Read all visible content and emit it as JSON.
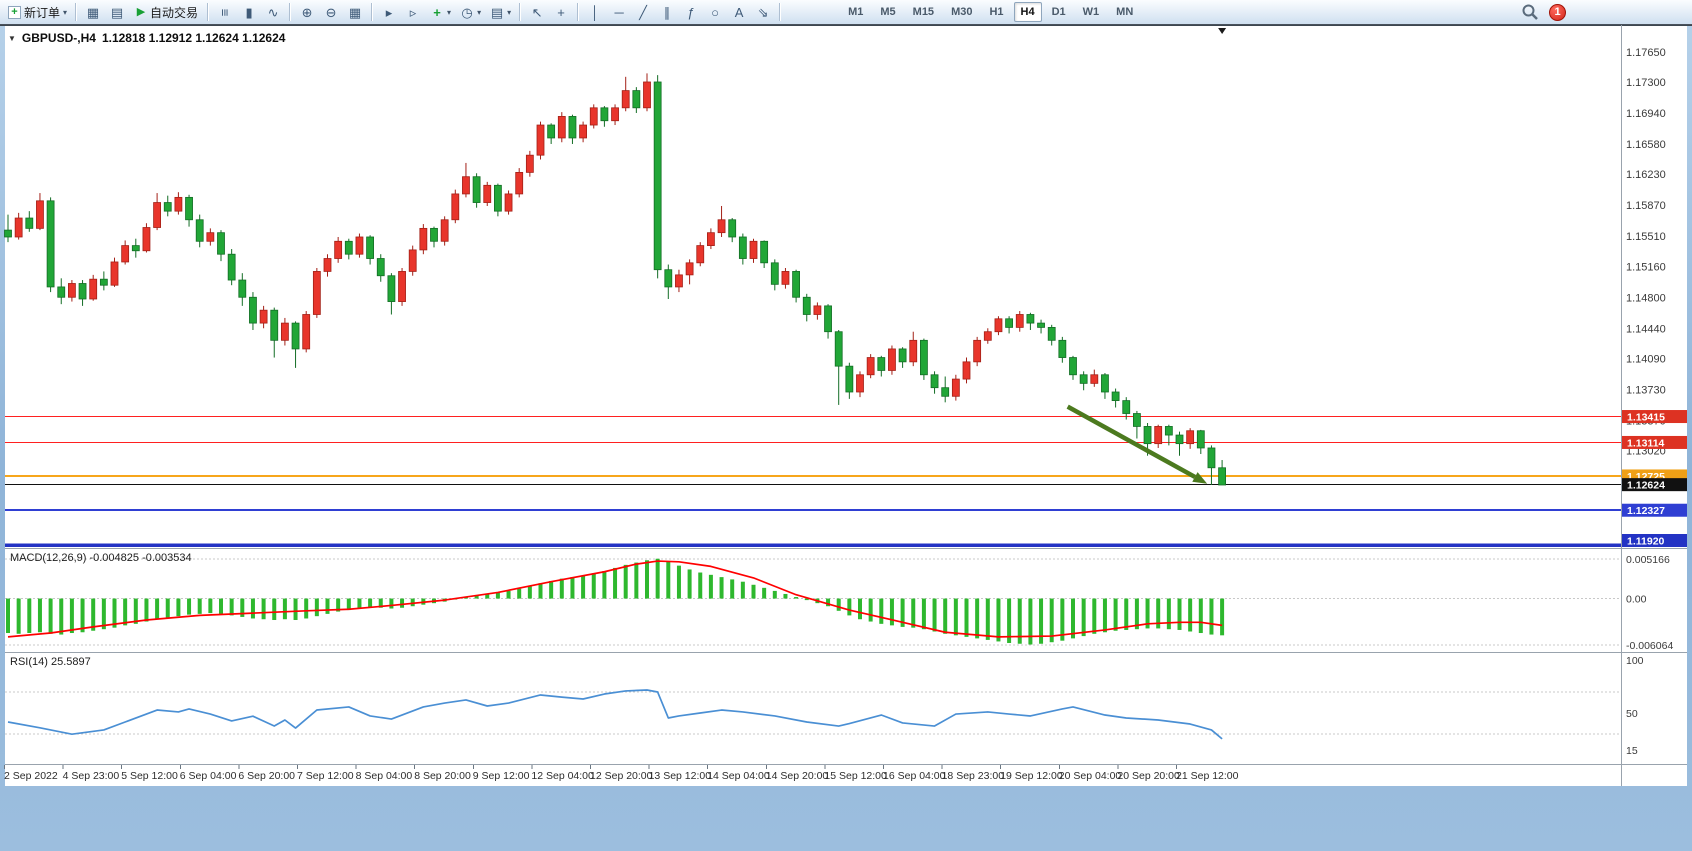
{
  "toolbar": {
    "new_order_label": "新订单",
    "auto_trading_label": "自动交易",
    "dropdown_caret": "▾",
    "icon_groups": [
      [
        {
          "name": "market-watch",
          "glyph": "▦"
        },
        {
          "name": "navigator",
          "glyph": "▤"
        }
      ],
      [
        {
          "name": "bar-chart",
          "glyph": "≡",
          "rot": true
        },
        {
          "name": "candlestick-chart",
          "glyph": "▮"
        },
        {
          "name": "line-chart",
          "glyph": "∿"
        }
      ],
      [
        {
          "name": "zoom-in",
          "glyph": "⊕"
        },
        {
          "name": "zoom-out",
          "glyph": "⊖"
        },
        {
          "name": "tile-windows",
          "glyph": "▦"
        }
      ],
      [
        {
          "name": "auto-scroll",
          "glyph": "▸"
        },
        {
          "name": "chart-shift",
          "glyph": "▹"
        },
        {
          "name": "indicators",
          "glyph": "+",
          "caret": true,
          "green": true
        },
        {
          "name": "periods",
          "glyph": "◷",
          "caret": true
        },
        {
          "name": "templates",
          "glyph": "▤",
          "caret": true
        }
      ],
      [
        {
          "name": "cursor",
          "glyph": "↖"
        },
        {
          "name": "crosshair",
          "glyph": "+"
        }
      ],
      [
        {
          "name": "vertical-line",
          "glyph": "│"
        },
        {
          "name": "horizontal-line",
          "glyph": "─"
        },
        {
          "name": "trendline",
          "glyph": "╱"
        },
        {
          "name": "equidistant-channel",
          "glyph": "∥"
        },
        {
          "name": "fibonacci",
          "glyph": "ƒ"
        },
        {
          "name": "ellipse",
          "glyph": "○"
        },
        {
          "name": "text",
          "glyph": "A"
        },
        {
          "name": "arrows",
          "glyph": "⇘"
        }
      ]
    ],
    "timeframes": [
      "M1",
      "M5",
      "M15",
      "M30",
      "H1",
      "H4",
      "D1",
      "W1",
      "MN"
    ],
    "active_timeframe": "H4",
    "notification_badge": "1"
  },
  "chart": {
    "collapse_caret": "▼",
    "symbol_title": "GBPUSD-,H4",
    "ohlc_text": "1.12818 1.12912 1.12624 1.12624"
  },
  "chart_data": {
    "type": "candlestick",
    "symbol": "GBPUSD-",
    "timeframe": "H4",
    "last_ohlc": {
      "open": 1.12818,
      "high": 1.12912,
      "low": 1.12624,
      "close": 1.12624
    },
    "bull_color": "#e8352b",
    "bear_color": "#21a637",
    "bull_border": "#a32017",
    "bear_border": "#136d25",
    "price_axis_labels": [
      "1.17650",
      "1.17300",
      "1.16940",
      "1.16580",
      "1.16230",
      "1.15870",
      "1.15510",
      "1.15160",
      "1.14800",
      "1.14440",
      "1.14090",
      "1.13730",
      "1.13370",
      "1.13020"
    ],
    "candles": [
      [
        1.1558,
        1.1576,
        1.1544,
        1.155
      ],
      [
        1.155,
        1.1578,
        1.1547,
        1.1572
      ],
      [
        1.1572,
        1.158,
        1.1556,
        1.156
      ],
      [
        1.156,
        1.1601,
        1.1558,
        1.1592
      ],
      [
        1.1592,
        1.1596,
        1.1486,
        1.1492
      ],
      [
        1.1492,
        1.1502,
        1.1472,
        1.148
      ],
      [
        1.148,
        1.15,
        1.1475,
        1.1496
      ],
      [
        1.1496,
        1.15,
        1.147,
        1.1478
      ],
      [
        1.1478,
        1.1506,
        1.1476,
        1.1501
      ],
      [
        1.1501,
        1.151,
        1.1488,
        1.1494
      ],
      [
        1.1494,
        1.1526,
        1.1492,
        1.1521
      ],
      [
        1.1521,
        1.1546,
        1.1518,
        1.154
      ],
      [
        1.154,
        1.1548,
        1.1526,
        1.1534
      ],
      [
        1.1534,
        1.1566,
        1.1532,
        1.1561
      ],
      [
        1.1561,
        1.1601,
        1.1558,
        1.159
      ],
      [
        1.159,
        1.1598,
        1.1574,
        1.158
      ],
      [
        1.158,
        1.1602,
        1.1576,
        1.1596
      ],
      [
        1.1596,
        1.1599,
        1.1562,
        1.157
      ],
      [
        1.157,
        1.1576,
        1.1538,
        1.1545
      ],
      [
        1.1545,
        1.156,
        1.154,
        1.1555
      ],
      [
        1.1555,
        1.1558,
        1.1522,
        1.153
      ],
      [
        1.153,
        1.1536,
        1.1494,
        1.15
      ],
      [
        1.15,
        1.1508,
        1.147,
        1.148
      ],
      [
        1.148,
        1.1486,
        1.1442,
        1.145
      ],
      [
        1.145,
        1.147,
        1.1444,
        1.1465
      ],
      [
        1.1465,
        1.1468,
        1.141,
        1.143
      ],
      [
        1.143,
        1.1456,
        1.1424,
        1.145
      ],
      [
        1.145,
        1.1452,
        1.1398,
        1.142
      ],
      [
        1.142,
        1.1464,
        1.1416,
        1.146
      ],
      [
        1.146,
        1.1514,
        1.1456,
        1.151
      ],
      [
        1.151,
        1.153,
        1.1504,
        1.1525
      ],
      [
        1.1525,
        1.155,
        1.152,
        1.1545
      ],
      [
        1.1545,
        1.1548,
        1.1524,
        1.153
      ],
      [
        1.153,
        1.1554,
        1.1526,
        1.155
      ],
      [
        1.155,
        1.1552,
        1.1518,
        1.1525
      ],
      [
        1.1525,
        1.153,
        1.1498,
        1.1505
      ],
      [
        1.1505,
        1.1508,
        1.146,
        1.1475
      ],
      [
        1.1475,
        1.1514,
        1.147,
        1.151
      ],
      [
        1.151,
        1.154,
        1.1505,
        1.1535
      ],
      [
        1.1535,
        1.1565,
        1.153,
        1.156
      ],
      [
        1.156,
        1.1562,
        1.1538,
        1.1545
      ],
      [
        1.1545,
        1.1574,
        1.154,
        1.157
      ],
      [
        1.157,
        1.1605,
        1.1566,
        1.16
      ],
      [
        1.16,
        1.1636,
        1.1596,
        1.162
      ],
      [
        1.162,
        1.1624,
        1.1584,
        1.159
      ],
      [
        1.159,
        1.1614,
        1.1586,
        1.161
      ],
      [
        1.161,
        1.1612,
        1.1574,
        1.158
      ],
      [
        1.158,
        1.1604,
        1.1576,
        1.16
      ],
      [
        1.16,
        1.163,
        1.1596,
        1.1625
      ],
      [
        1.1625,
        1.165,
        1.162,
        1.1645
      ],
      [
        1.1645,
        1.1684,
        1.164,
        1.168
      ],
      [
        1.168,
        1.1682,
        1.1658,
        1.1665
      ],
      [
        1.1665,
        1.1695,
        1.166,
        1.169
      ],
      [
        1.169,
        1.1692,
        1.1658,
        1.1665
      ],
      [
        1.1665,
        1.1684,
        1.166,
        1.168
      ],
      [
        1.168,
        1.1704,
        1.1676,
        1.17
      ],
      [
        1.17,
        1.1702,
        1.1678,
        1.1685
      ],
      [
        1.1685,
        1.1704,
        1.168,
        1.17
      ],
      [
        1.17,
        1.1736,
        1.1696,
        1.172
      ],
      [
        1.172,
        1.1724,
        1.1694,
        1.17
      ],
      [
        1.17,
        1.174,
        1.1696,
        1.173
      ],
      [
        1.173,
        1.1738,
        1.1502,
        1.1512
      ],
      [
        1.1512,
        1.1518,
        1.1478,
        1.1492
      ],
      [
        1.1492,
        1.1512,
        1.1486,
        1.1506
      ],
      [
        1.1506,
        1.1524,
        1.1495,
        1.152
      ],
      [
        1.152,
        1.1544,
        1.1516,
        1.154
      ],
      [
        1.154,
        1.156,
        1.1536,
        1.1555
      ],
      [
        1.1555,
        1.1586,
        1.155,
        1.157
      ],
      [
        1.157,
        1.1572,
        1.1544,
        1.155
      ],
      [
        1.155,
        1.1554,
        1.1518,
        1.1525
      ],
      [
        1.1525,
        1.1548,
        1.152,
        1.1545
      ],
      [
        1.1545,
        1.1546,
        1.1514,
        1.152
      ],
      [
        1.152,
        1.1524,
        1.1488,
        1.1495
      ],
      [
        1.1495,
        1.1514,
        1.149,
        1.151
      ],
      [
        1.151,
        1.1512,
        1.1474,
        1.148
      ],
      [
        1.148,
        1.1484,
        1.1452,
        1.146
      ],
      [
        1.146,
        1.1474,
        1.1454,
        1.147
      ],
      [
        1.147,
        1.1472,
        1.1432,
        1.144
      ],
      [
        1.144,
        1.1442,
        1.1355,
        1.14
      ],
      [
        1.14,
        1.1404,
        1.1362,
        1.137
      ],
      [
        1.137,
        1.1394,
        1.1364,
        1.139
      ],
      [
        1.139,
        1.1414,
        1.1386,
        1.141
      ],
      [
        1.141,
        1.1412,
        1.1388,
        1.1395
      ],
      [
        1.1395,
        1.1424,
        1.139,
        1.142
      ],
      [
        1.142,
        1.1422,
        1.1398,
        1.1405
      ],
      [
        1.1405,
        1.144,
        1.14,
        1.143
      ],
      [
        1.143,
        1.1432,
        1.1384,
        1.139
      ],
      [
        1.139,
        1.1394,
        1.1368,
        1.1375
      ],
      [
        1.1375,
        1.1388,
        1.1358,
        1.1365
      ],
      [
        1.1365,
        1.139,
        1.136,
        1.1385
      ],
      [
        1.1385,
        1.141,
        1.138,
        1.1405
      ],
      [
        1.1405,
        1.1434,
        1.14,
        1.143
      ],
      [
        1.143,
        1.1444,
        1.1426,
        1.144
      ],
      [
        1.144,
        1.1458,
        1.1436,
        1.1455
      ],
      [
        1.1455,
        1.1458,
        1.1438,
        1.1445
      ],
      [
        1.1445,
        1.1464,
        1.144,
        1.146
      ],
      [
        1.146,
        1.1462,
        1.1442,
        1.145
      ],
      [
        1.145,
        1.1454,
        1.1438,
        1.1445
      ],
      [
        1.1445,
        1.1448,
        1.1424,
        1.143
      ],
      [
        1.143,
        1.1434,
        1.1404,
        1.141
      ],
      [
        1.141,
        1.1412,
        1.1384,
        1.139
      ],
      [
        1.139,
        1.1394,
        1.1372,
        1.138
      ],
      [
        1.138,
        1.1396,
        1.1376,
        1.139
      ],
      [
        1.139,
        1.1392,
        1.1362,
        1.137
      ],
      [
        1.137,
        1.1374,
        1.1352,
        1.136
      ],
      [
        1.136,
        1.1364,
        1.1338,
        1.1345
      ],
      [
        1.1345,
        1.1348,
        1.1316,
        1.133
      ],
      [
        1.133,
        1.1334,
        1.1296,
        1.131
      ],
      [
        1.131,
        1.1332,
        1.1305,
        1.133
      ],
      [
        1.133,
        1.1332,
        1.1308,
        1.132
      ],
      [
        1.132,
        1.1324,
        1.1296,
        1.131
      ],
      [
        1.131,
        1.1328,
        1.1304,
        1.1325
      ],
      [
        1.1325,
        1.1326,
        1.1298,
        1.1305
      ],
      [
        1.1305,
        1.1308,
        1.1262,
        1.1282
      ],
      [
        1.1282,
        1.1291,
        1.1262,
        1.1262
      ]
    ],
    "hlines": [
      {
        "label": "1.13415",
        "price": 1.13415,
        "color": "#ff2020",
        "width": 1.2,
        "tag_bg": "#dd3222"
      },
      {
        "label": "1.13114",
        "price": 1.13114,
        "color": "#ff2020",
        "width": 1.2,
        "tag_bg": "#dd3222"
      },
      {
        "label": "1.12725",
        "price": 1.12725,
        "color": "#f7a61b",
        "width": 2,
        "tag_bg": "#f0a016"
      },
      {
        "label": "1.12624",
        "price": 1.12624,
        "color": "#111111",
        "width": 1,
        "tag_bg": "#111111",
        "role": "bid-price"
      },
      {
        "label": "1.12327",
        "price": 1.12327,
        "color": "#2f3fd3",
        "width": 2,
        "tag_bg": "#2f3fd3"
      },
      {
        "label": "1.11920",
        "price": 1.1192,
        "color": "#2333c4",
        "width": 3.5,
        "tag_bg": "#2333c4"
      }
    ],
    "arrow": {
      "from": [
        99.5,
        1.1353
      ],
      "to": [
        112.6,
        1.12635
      ],
      "color": "#4c7a1f"
    },
    "macd": {
      "label": "MACD(12,26,9) -0.004825 -0.003534",
      "params": "12,26,9",
      "current_values": {
        "macd": -0.004825,
        "signal": -0.003534
      },
      "axis_labels": [
        "0.005166",
        "0.00",
        "-0.006064"
      ],
      "histogram_color": "#2eb82e",
      "signal_color": "#ff0000",
      "value_scale": 0.0001,
      "histogram": [
        -45,
        -46,
        -45,
        -44,
        -46,
        -47,
        -45,
        -44,
        -42,
        -40,
        -38,
        -35,
        -33,
        -30,
        -27,
        -25,
        -23,
        -21,
        -20,
        -19,
        -20,
        -22,
        -24,
        -26,
        -27,
        -28,
        -27,
        -28,
        -26,
        -23,
        -20,
        -17,
        -15,
        -13,
        -12,
        -12,
        -13,
        -12,
        -10,
        -8,
        -6,
        -4,
        -1,
        2,
        4,
        6,
        8,
        10,
        13,
        16,
        20,
        23,
        26,
        28,
        30,
        33,
        36,
        40,
        44,
        47,
        50,
        52,
        48,
        43,
        38,
        34,
        31,
        28,
        25,
        22,
        18,
        14,
        10,
        6,
        2,
        -2,
        -6,
        -10,
        -16,
        -22,
        -27,
        -30,
        -33,
        -35,
        -37,
        -38,
        -40,
        -43,
        -46,
        -48,
        -50,
        -52,
        -54,
        -56,
        -58,
        -59,
        -60,
        -59,
        -57,
        -55,
        -52,
        -49,
        -46,
        -44,
        -42,
        -41,
        -40,
        -39,
        -39,
        -40,
        -41,
        -43,
        -45,
        -47,
        -48
      ],
      "signal_points": [
        [
          0,
          -50
        ],
        [
          4,
          -45
        ],
        [
          8,
          -37
        ],
        [
          13,
          -28
        ],
        [
          18,
          -22
        ],
        [
          23,
          -19
        ],
        [
          28,
          -16
        ],
        [
          32,
          -14
        ],
        [
          36,
          -9
        ],
        [
          41,
          -2
        ],
        [
          46,
          8
        ],
        [
          51,
          22
        ],
        [
          56,
          35
        ],
        [
          59,
          45
        ],
        [
          61,
          49
        ],
        [
          63,
          48
        ],
        [
          66,
          42
        ],
        [
          70,
          27
        ],
        [
          74,
          5
        ],
        [
          79,
          -15
        ],
        [
          84,
          -31
        ],
        [
          88,
          -44
        ],
        [
          93,
          -50
        ],
        [
          98,
          -49
        ],
        [
          103,
          -41
        ],
        [
          107,
          -33
        ],
        [
          110,
          -31
        ],
        [
          112,
          -31
        ],
        [
          114,
          -35
        ]
      ]
    },
    "rsi": {
      "label": "RSI(14) 25.5897",
      "period": 14,
      "current_value": 25.5897,
      "axis_labels": [
        "100",
        "50",
        "15"
      ],
      "levels": [
        70,
        30
      ],
      "line_color": "#4a8fd4",
      "points": [
        [
          0,
          41.5
        ],
        [
          3,
          36
        ],
        [
          6,
          30
        ],
        [
          9,
          34
        ],
        [
          11,
          41.5
        ],
        [
          14,
          52.8
        ],
        [
          16,
          51
        ],
        [
          17,
          53.8
        ],
        [
          19,
          49
        ],
        [
          21,
          42.5
        ],
        [
          23,
          47
        ],
        [
          25,
          37.7
        ],
        [
          26,
          43.4
        ],
        [
          27,
          35.8
        ],
        [
          29,
          52.8
        ],
        [
          32,
          55.7
        ],
        [
          34,
          47.2
        ],
        [
          36,
          44.3
        ],
        [
          39,
          55.7
        ],
        [
          41,
          59.4
        ],
        [
          43,
          62.3
        ],
        [
          45,
          56.6
        ],
        [
          47,
          59.4
        ],
        [
          50,
          67
        ],
        [
          52,
          65
        ],
        [
          54,
          63.2
        ],
        [
          56,
          67.9
        ],
        [
          58,
          70.8
        ],
        [
          60,
          71.7
        ],
        [
          61,
          69.8
        ],
        [
          62,
          45.3
        ],
        [
          63,
          47.2
        ],
        [
          65,
          50
        ],
        [
          67,
          52.8
        ],
        [
          69,
          51
        ],
        [
          72,
          47.2
        ],
        [
          75,
          41.5
        ],
        [
          78,
          37.7
        ],
        [
          79,
          40
        ],
        [
          82,
          48.1
        ],
        [
          84,
          40.6
        ],
        [
          87,
          37.7
        ],
        [
          89,
          49
        ],
        [
          92,
          51
        ],
        [
          94,
          49
        ],
        [
          96,
          47.2
        ],
        [
          99,
          53.8
        ],
        [
          100,
          55.7
        ],
        [
          103,
          48.1
        ],
        [
          105,
          45.3
        ],
        [
          108,
          43.4
        ],
        [
          111,
          39.6
        ],
        [
          113,
          34
        ],
        [
          114,
          25.6
        ]
      ]
    },
    "time_axis_labels": [
      "2 Sep 2022",
      "4 Sep 23:00",
      "5 Sep 12:00",
      "6 Sep 04:00",
      "6 Sep 20:00",
      "7 Sep 12:00",
      "8 Sep 04:00",
      "8 Sep 20:00",
      "9 Sep 12:00",
      "12 Sep 04:00",
      "12 Sep 20:00",
      "13 Sep 12:00",
      "14 Sep 04:00",
      "14 Sep 20:00",
      "15 Sep 12:00",
      "16 Sep 04:00",
      "18 Sep 23:00",
      "19 Sep 12:00",
      "20 Sep 04:00",
      "20 Sep 20:00",
      "21 Sep 12:00"
    ]
  }
}
